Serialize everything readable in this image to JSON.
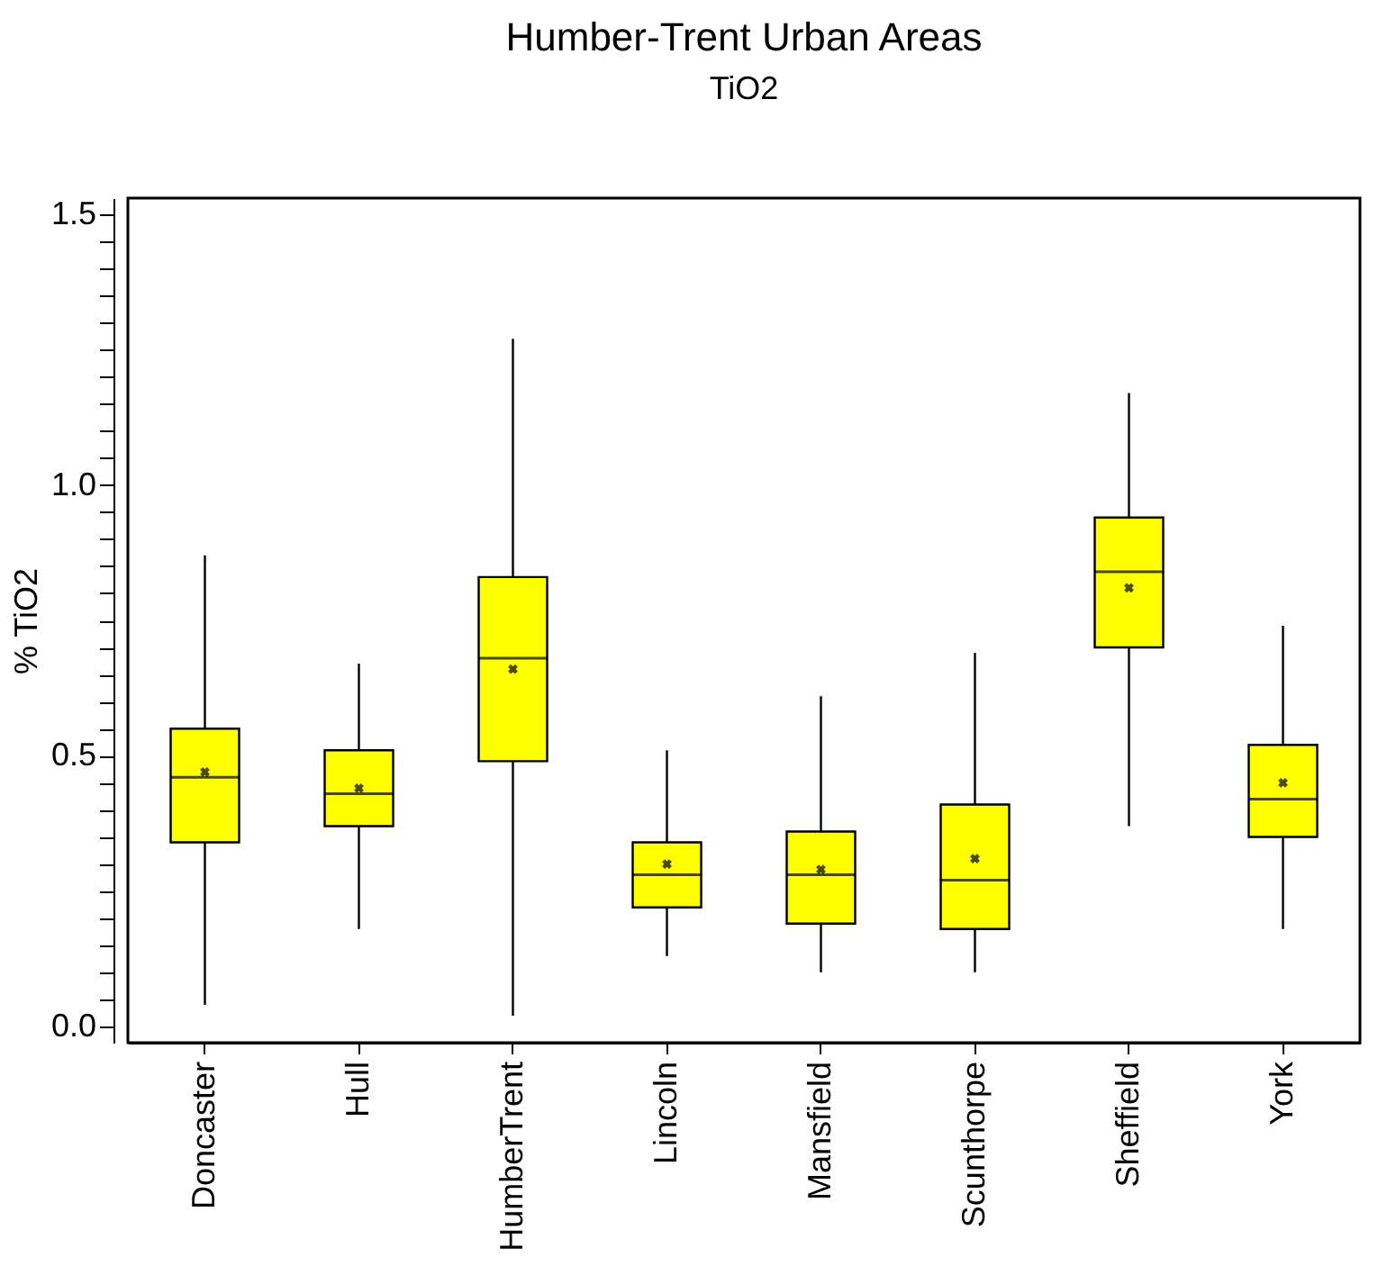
{
  "chart_data": {
    "type": "box",
    "title": "Humber-Trent Urban Areas",
    "subtitle": "TiO2",
    "ylabel": "% TiO2",
    "categories": [
      "Doncaster",
      "Hull",
      "HumberTrent",
      "Lincoln",
      "Mansfield",
      "Scunthorpe",
      "Sheffield",
      "York"
    ],
    "series": [
      {
        "color": "#ffff00",
        "boxes": [
          {
            "low": 0.04,
            "q1": 0.34,
            "median": 0.46,
            "q3": 0.55,
            "high": 0.87,
            "mean": 0.47
          },
          {
            "low": 0.18,
            "q1": 0.37,
            "median": 0.43,
            "q3": 0.51,
            "high": 0.67,
            "mean": 0.44
          },
          {
            "low": 0.02,
            "q1": 0.49,
            "median": 0.68,
            "q3": 0.83,
            "high": 1.27,
            "mean": 0.66
          },
          {
            "low": 0.13,
            "q1": 0.22,
            "median": 0.28,
            "q3": 0.34,
            "high": 0.51,
            "mean": 0.3
          },
          {
            "low": 0.1,
            "q1": 0.19,
            "median": 0.28,
            "q3": 0.36,
            "high": 0.61,
            "mean": 0.29
          },
          {
            "low": 0.1,
            "q1": 0.18,
            "median": 0.27,
            "q3": 0.41,
            "high": 0.69,
            "mean": 0.31
          },
          {
            "low": 0.37,
            "q1": 0.7,
            "median": 0.84,
            "q3": 0.94,
            "high": 1.17,
            "mean": 0.81
          },
          {
            "low": 0.18,
            "q1": 0.35,
            "median": 0.42,
            "q3": 0.52,
            "high": 0.74,
            "mean": 0.45
          }
        ]
      }
    ],
    "ylim": [
      -0.03,
      1.53
    ],
    "yticks": [
      {
        "value": 0,
        "label": "0.0"
      },
      {
        "value": 0.05,
        "label": null
      },
      {
        "value": 0.1,
        "label": null
      },
      {
        "value": 0.15,
        "label": null
      },
      {
        "value": 0.2,
        "label": null
      },
      {
        "value": 0.25,
        "label": null
      },
      {
        "value": 0.3,
        "label": null
      },
      {
        "value": 0.35,
        "label": null
      },
      {
        "value": 0.4,
        "label": null
      },
      {
        "value": 0.45,
        "label": null
      },
      0.5,
      {
        "value": 0.55,
        "label": null
      },
      {
        "value": 0.6,
        "label": null
      },
      {
        "value": 0.65,
        "label": null
      },
      {
        "value": 0.7,
        "label": null
      },
      {
        "value": 0.75,
        "label": null
      },
      {
        "value": 0.8,
        "label": null
      },
      {
        "value": 0.85,
        "label": null
      },
      {
        "value": 0.9,
        "label": null
      },
      {
        "value": 0.95,
        "label": null
      },
      {
        "value": 1,
        "label": "1.0"
      },
      {
        "value": 1.05,
        "label": null
      },
      {
        "value": 1.1,
        "label": null
      },
      {
        "value": 1.15,
        "label": null
      },
      {
        "value": 1.2,
        "label": null
      },
      {
        "value": 1.25,
        "label": null
      },
      {
        "value": 1.3,
        "label": null
      },
      {
        "value": 1.35,
        "label": null
      },
      {
        "value": 1.4,
        "label": null
      },
      {
        "value": 1.45,
        "label": null
      },
      1.5
    ],
    "grid": false
  }
}
